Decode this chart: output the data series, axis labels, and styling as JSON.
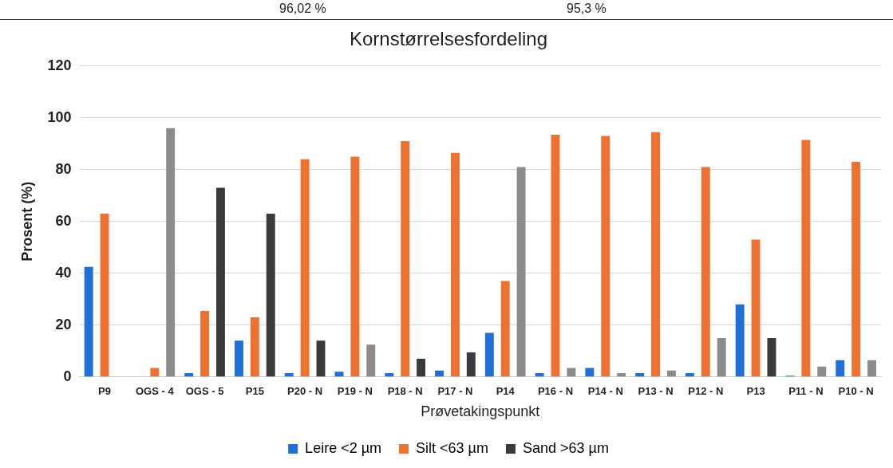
{
  "chart_data": {
    "type": "bar",
    "title": "Kornstørrelsesfordeling",
    "xlabel": "Prøvetakingspunkt",
    "ylabel": "Prosent (%)",
    "annotations": [
      "96,02 %",
      "95,3 %"
    ],
    "categories": [
      "P9",
      "OGS - 4",
      "OGS - 5",
      "P15",
      "P20 - N",
      "P19 - N",
      "P18 - N",
      "P17 - N",
      "P14",
      "P16 - N",
      "P14 - N",
      "P13 - N",
      "P12 - N",
      "P13",
      "P11 - N",
      "P10 - N"
    ],
    "series": [
      {
        "name": "Leire <2 µm",
        "color": "#1f6fd6",
        "values": [
          42.5,
          null,
          1.5,
          14,
          1.5,
          2,
          1.5,
          2.5,
          17,
          1.5,
          3.5,
          1.5,
          1.5,
          28,
          0.5,
          6.5
        ]
      },
      {
        "name": "Silt <63 µm",
        "color": "#ed7131",
        "values": [
          63,
          3.5,
          25.5,
          23,
          84,
          85,
          91,
          86.5,
          37,
          93.5,
          93,
          94.5,
          81,
          53,
          91.5,
          83
        ]
      },
      {
        "name": "Sand >63 µm",
        "color": "#3a3a3a",
        "colors": [
          "#3a3a3a",
          "#8c8c8c",
          "#3a3a3a",
          "#3a3a3a",
          "#3a3a3a",
          "#8c8c8c",
          "#3a3a3a",
          "#3a3a3a",
          "#8c8c8c",
          "#8c8c8c",
          "#8c8c8c",
          "#8c8c8c",
          "#8c8c8c",
          "#3a3a3a",
          "#8c8c8c",
          "#8c8c8c"
        ],
        "values": [
          null,
          96,
          73,
          63,
          14,
          12.5,
          7,
          9.5,
          81,
          3.5,
          1.5,
          2.5,
          15,
          15,
          4,
          6.5
        ]
      }
    ],
    "ylim": [
      0,
      120
    ],
    "yticks": [
      0,
      20,
      40,
      60,
      80,
      100,
      120
    ],
    "grid": "y",
    "legend": "bottom"
  }
}
